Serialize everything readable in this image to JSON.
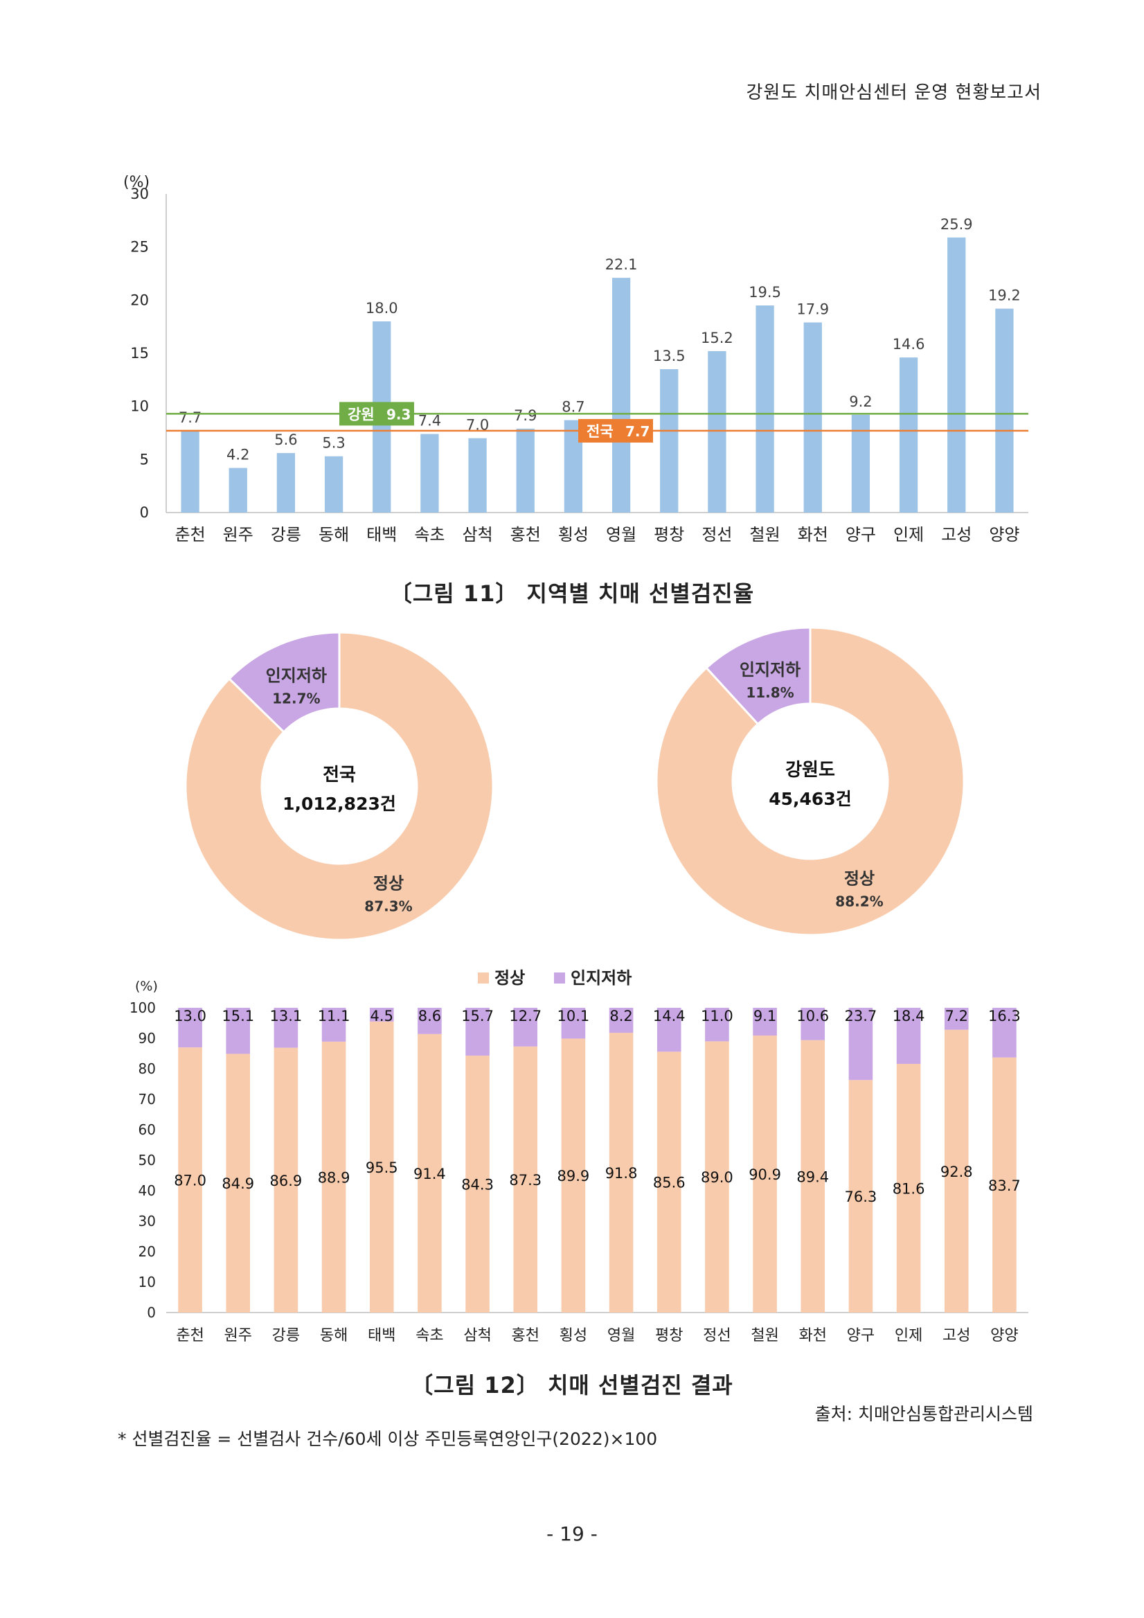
{
  "header": {
    "title": "강원도 치매안심센터 운영 현황보고서"
  },
  "captions": {
    "fig11": "〔그림 11〕 지역별 치매 선별검진율",
    "fig12": "〔그림 12〕 치매 선별검진 결과"
  },
  "source": "출처: 치매안심통합관리시스템",
  "footnote": "* 선별검진율 = 선별검사 건수/60세 이상 주민등록연앙인구(2022)×100",
  "page_number": "- 19 -",
  "colors": {
    "bar_blue": "#9dc3e6",
    "gangwon_line": "#70ad47",
    "national_line": "#ed7d31",
    "normal": "#f8cbad",
    "impaired": "#c9a6e4",
    "axis": "#bfbfbf"
  },
  "chart_data": [
    {
      "id": "fig11",
      "type": "bar",
      "unit_label": "(%)",
      "ylim": [
        0,
        30
      ],
      "yticks": [
        0,
        5,
        10,
        15,
        20,
        25,
        30
      ],
      "categories": [
        "춘천",
        "원주",
        "강릉",
        "동해",
        "태백",
        "속초",
        "삼척",
        "홍천",
        "횡성",
        "영월",
        "평창",
        "정선",
        "철원",
        "화천",
        "양구",
        "인제",
        "고성",
        "양양"
      ],
      "values": [
        7.7,
        4.2,
        5.6,
        5.3,
        18.0,
        7.4,
        7.0,
        7.9,
        8.7,
        22.1,
        13.5,
        15.2,
        19.5,
        17.9,
        9.2,
        14.6,
        25.9,
        19.2
      ],
      "labels": [
        "7.7",
        "4.2",
        "5.6",
        "5.3",
        "18.0",
        "7.4",
        "7.0",
        "7.9",
        "8.7",
        "22.1",
        "13.5",
        "15.2",
        "19.5",
        "17.9",
        "9.2",
        "14.6",
        "25.9",
        "19.2"
      ],
      "reference_lines": [
        {
          "name": "강원",
          "value": 9.3,
          "label": "9.3"
        },
        {
          "name": "전국",
          "value": 7.7,
          "label": "7.7"
        }
      ],
      "grid": false
    },
    {
      "id": "fig12-national",
      "type": "pie",
      "style": "donut",
      "center_title": "전국",
      "center_value": "1,012,823건",
      "slices": [
        {
          "name": "인지저하",
          "value": 12.7,
          "label": "12.7%"
        },
        {
          "name": "정상",
          "value": 87.3,
          "label": "87.3%"
        }
      ]
    },
    {
      "id": "fig12-gangwon",
      "type": "pie",
      "style": "donut",
      "center_title": "강원도",
      "center_value": "45,463건",
      "slices": [
        {
          "name": "인지저하",
          "value": 11.8,
          "label": "11.8%"
        },
        {
          "name": "정상",
          "value": 88.2,
          "label": "88.2%"
        }
      ]
    },
    {
      "id": "fig12-stacked",
      "type": "bar",
      "stacked": true,
      "unit_label": "(%)",
      "ylim": [
        0,
        100
      ],
      "yticks": [
        0,
        10,
        20,
        30,
        40,
        50,
        60,
        70,
        80,
        90,
        100
      ],
      "legend_position": "top-center",
      "categories": [
        "춘천",
        "원주",
        "강릉",
        "동해",
        "태백",
        "속초",
        "삼척",
        "홍천",
        "횡성",
        "영월",
        "평창",
        "정선",
        "철원",
        "화천",
        "양구",
        "인제",
        "고성",
        "양양"
      ],
      "series": [
        {
          "name": "정상",
          "values": [
            87.0,
            84.9,
            86.9,
            88.9,
            95.5,
            91.4,
            84.3,
            87.3,
            89.9,
            91.8,
            85.6,
            89.0,
            90.9,
            89.4,
            76.3,
            81.6,
            92.8,
            83.7
          ],
          "labels": [
            "87.0",
            "84.9",
            "86.9",
            "88.9",
            "95.5",
            "91.4",
            "84.3",
            "87.3",
            "89.9",
            "91.8",
            "85.6",
            "89.0",
            "90.9",
            "89.4",
            "76.3",
            "81.6",
            "92.8",
            "83.7"
          ]
        },
        {
          "name": "인지저하",
          "values": [
            13.0,
            15.1,
            13.1,
            11.1,
            4.5,
            8.6,
            15.7,
            12.7,
            10.1,
            8.2,
            14.4,
            11.0,
            9.1,
            10.6,
            23.7,
            18.4,
            7.2,
            16.3
          ],
          "labels": [
            "13.0",
            "15.1",
            "13.1",
            "11.1",
            "4.5",
            "8.6",
            "15.7",
            "12.7",
            "10.1",
            "8.2",
            "14.4",
            "11.0",
            "9.1",
            "10.6",
            "23.7",
            "18.4",
            "7.2",
            "16.3"
          ]
        }
      ]
    }
  ]
}
